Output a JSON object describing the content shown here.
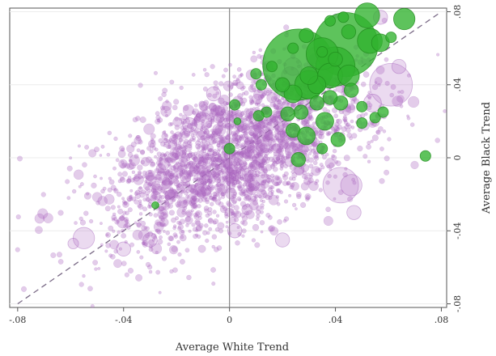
{
  "chart_data": {
    "type": "scatter",
    "xlabel": "Average White Trend",
    "ylabel": "Average Black Trend",
    "xlim": [
      -0.083,
      0.082
    ],
    "ylim": [
      -0.082,
      0.082
    ],
    "x_ticks": [
      {
        "value": -0.08,
        "label": "-.08"
      },
      {
        "value": -0.04,
        "label": "-.04"
      },
      {
        "value": 0,
        "label": "0"
      },
      {
        "value": 0.04,
        "label": ".04"
      },
      {
        "value": 0.08,
        "label": ".08"
      }
    ],
    "y_ticks": [
      {
        "value": -0.08,
        "label": "-.08"
      },
      {
        "value": -0.04,
        "label": "-.04"
      },
      {
        "value": 0,
        "label": "0"
      },
      {
        "value": 0.04,
        "label": ".04"
      },
      {
        "value": 0.08,
        "label": ".08"
      }
    ],
    "grid": true,
    "y_axis_position": "right",
    "reference_lines": [
      {
        "type": "vertical",
        "x": 0
      },
      {
        "type": "diagonal",
        "from": [
          -0.08,
          -0.08
        ],
        "to": [
          0.08,
          0.08
        ],
        "style": "dashed"
      }
    ],
    "series": [
      {
        "color": "#b06cc4",
        "cloud": {
          "n": 2400,
          "center": [
            0.002,
            0.002
          ],
          "spread": [
            0.024,
            0.024
          ],
          "correlation": 0.55
        },
        "points": [
          {
            "x": 0.061,
            "y": 0.04,
            "s": 12
          },
          {
            "x": 0.042,
            "y": -0.015,
            "s": 10
          },
          {
            "x": -0.055,
            "y": -0.044,
            "s": 6
          },
          {
            "x": -0.01,
            "y": 0.02,
            "s": 5
          },
          {
            "x": 0.033,
            "y": 0.055,
            "s": 6
          },
          {
            "x": 0.054,
            "y": 0.03,
            "s": 5
          },
          {
            "x": 0.046,
            "y": -0.015,
            "s": 6
          },
          {
            "x": 0.023,
            "y": 0.045,
            "s": 5
          },
          {
            "x": 0.047,
            "y": -0.03,
            "s": 4
          },
          {
            "x": -0.015,
            "y": 0.018,
            "s": 4
          },
          {
            "x": -0.03,
            "y": -0.045,
            "s": 4
          },
          {
            "x": 0.057,
            "y": 0.077,
            "s": 4
          },
          {
            "x": 0.002,
            "y": -0.04,
            "s": 4
          },
          {
            "x": -0.04,
            "y": -0.05,
            "s": 4
          },
          {
            "x": 0.02,
            "y": -0.045,
            "s": 4
          },
          {
            "x": -0.059,
            "y": -0.047,
            "s": 3
          },
          {
            "x": 0.064,
            "y": 0.05,
            "s": 4
          },
          {
            "x": 0.024,
            "y": 0.05,
            "s": 5
          },
          {
            "x": -0.006,
            "y": 0.035,
            "s": 4
          }
        ]
      },
      {
        "color": "#31b22e",
        "points": [
          {
            "x": 0.026,
            "y": 0.051,
            "s": 20
          },
          {
            "x": 0.044,
            "y": 0.062,
            "s": 18
          },
          {
            "x": 0.052,
            "y": 0.078,
            "s": 7
          },
          {
            "x": 0.053,
            "y": 0.064,
            "s": 7
          },
          {
            "x": 0.066,
            "y": 0.076,
            "s": 6
          },
          {
            "x": 0.04,
            "y": 0.05,
            "s": 11
          },
          {
            "x": 0.035,
            "y": 0.057,
            "s": 9
          },
          {
            "x": 0.03,
            "y": 0.04,
            "s": 8
          },
          {
            "x": 0.038,
            "y": 0.045,
            "s": 7
          },
          {
            "x": 0.057,
            "y": 0.063,
            "s": 5
          },
          {
            "x": 0.043,
            "y": 0.077,
            "s": 3
          },
          {
            "x": 0.042,
            "y": 0.03,
            "s": 4
          },
          {
            "x": 0.033,
            "y": 0.04,
            "s": 5
          },
          {
            "x": 0.045,
            "y": 0.045,
            "s": 6
          },
          {
            "x": 0.024,
            "y": 0.035,
            "s": 5
          },
          {
            "x": 0.036,
            "y": 0.02,
            "s": 5
          },
          {
            "x": 0.027,
            "y": 0.025,
            "s": 4
          },
          {
            "x": 0.014,
            "y": 0.025,
            "s": 3
          },
          {
            "x": 0.011,
            "y": 0.023,
            "s": 3
          },
          {
            "x": 0.024,
            "y": 0.015,
            "s": 4
          },
          {
            "x": 0.029,
            "y": 0.012,
            "s": 5
          },
          {
            "x": 0.022,
            "y": 0.024,
            "s": 4
          },
          {
            "x": 0.035,
            "y": 0.005,
            "s": 3
          },
          {
            "x": 0.041,
            "y": 0.01,
            "s": 4
          },
          {
            "x": 0.038,
            "y": 0.033,
            "s": 4
          },
          {
            "x": 0.03,
            "y": 0.045,
            "s": 5
          },
          {
            "x": 0.02,
            "y": 0.04,
            "s": 4
          },
          {
            "x": 0.05,
            "y": 0.028,
            "s": 3
          },
          {
            "x": 0.055,
            "y": 0.022,
            "s": 3
          },
          {
            "x": 0.058,
            "y": 0.025,
            "s": 3
          },
          {
            "x": 0.05,
            "y": 0.019,
            "s": 3
          },
          {
            "x": 0.046,
            "y": 0.037,
            "s": 4
          },
          {
            "x": 0.033,
            "y": 0.03,
            "s": 4
          },
          {
            "x": 0.026,
            "y": -0.001,
            "s": 4
          },
          {
            "x": 0.0,
            "y": 0.005,
            "s": 3
          },
          {
            "x": 0.003,
            "y": 0.02,
            "s": 2
          },
          {
            "x": 0.002,
            "y": 0.029,
            "s": 3
          },
          {
            "x": 0.012,
            "y": 0.04,
            "s": 3
          },
          {
            "x": 0.01,
            "y": 0.046,
            "s": 3
          },
          {
            "x": 0.016,
            "y": 0.05,
            "s": 3
          },
          {
            "x": 0.038,
            "y": 0.075,
            "s": 3
          },
          {
            "x": 0.029,
            "y": 0.067,
            "s": 4
          },
          {
            "x": 0.035,
            "y": 0.058,
            "s": 3
          },
          {
            "x": 0.024,
            "y": 0.06,
            "s": 3
          },
          {
            "x": 0.074,
            "y": 0.001,
            "s": 3
          },
          {
            "x": -0.028,
            "y": -0.026,
            "s": 2
          },
          {
            "x": 0.04,
            "y": 0.054,
            "s": 4
          },
          {
            "x": 0.045,
            "y": 0.069,
            "s": 4
          },
          {
            "x": 0.061,
            "y": 0.066,
            "s": 3
          }
        ]
      }
    ]
  }
}
